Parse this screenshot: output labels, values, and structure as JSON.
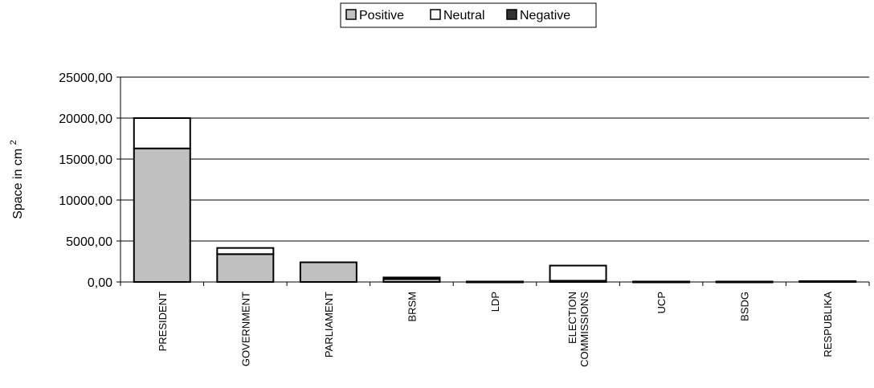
{
  "chart_data": {
    "type": "bar",
    "stacked": true,
    "categories": [
      "PRESIDENT",
      "GOVERNMENT",
      "PARLIAMENT",
      "BRSM",
      "LDP",
      "ELECTION COMMISSIONS",
      "UCP",
      "BSDG",
      "RESPUBLIKA"
    ],
    "category_lines": [
      [
        "PRESIDENT"
      ],
      [
        "GOVERNMENT"
      ],
      [
        "PARLIAMENT"
      ],
      [
        "BRSM"
      ],
      [
        "LDP"
      ],
      [
        "ELECTION",
        "COMMISSIONS"
      ],
      [
        "UCP"
      ],
      [
        "BSDG"
      ],
      [
        "RESPUBLIKA"
      ]
    ],
    "series": [
      {
        "name": "Positive",
        "color": "#c0c0c0",
        "values": [
          16300,
          3400,
          2400,
          350,
          50,
          150,
          50,
          50,
          100
        ]
      },
      {
        "name": "Neutral",
        "color": "#ffffff",
        "values": [
          3700,
          750,
          0,
          0,
          0,
          1850,
          0,
          0,
          0
        ]
      },
      {
        "name": "Negative",
        "color": "#333333",
        "values": [
          0,
          0,
          0,
          200,
          0,
          0,
          0,
          0,
          0
        ]
      }
    ],
    "ylabel": "Space  in cm",
    "ylabel_superscript": "2",
    "ylim": [
      0,
      25000
    ],
    "yticks": [
      0,
      5000,
      10000,
      15000,
      20000,
      25000
    ],
    "ytick_labels": [
      "0,00",
      "5000,00",
      "10000,00",
      "15000,00",
      "20000,00",
      "25000,00"
    ],
    "grid": true,
    "legend_position": "top-center"
  }
}
